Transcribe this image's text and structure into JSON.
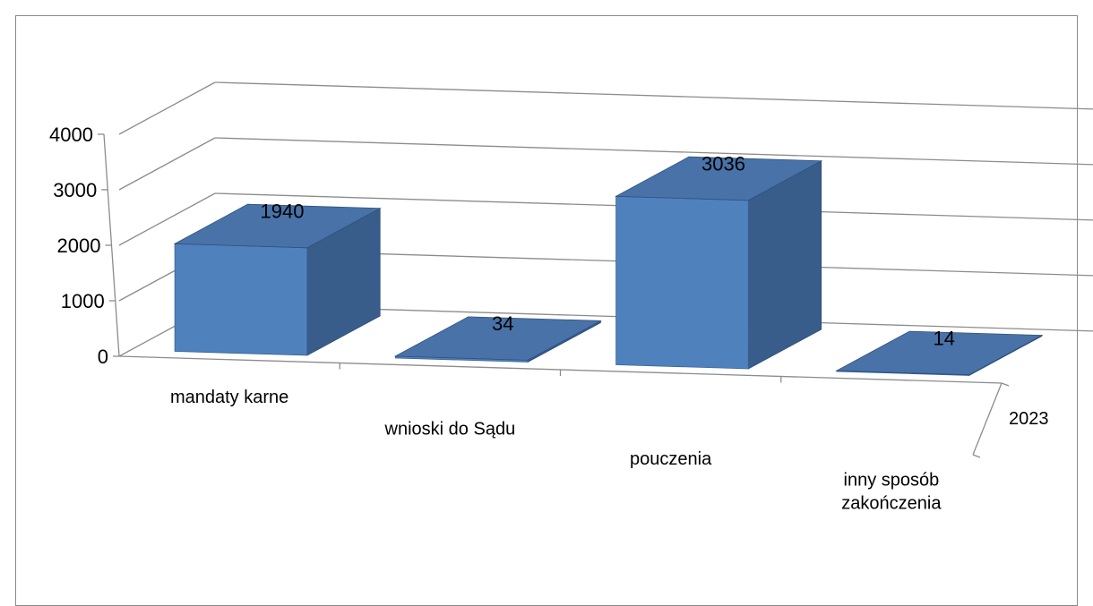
{
  "chart_data": {
    "type": "bar",
    "title": "",
    "categories": [
      "mandaty karne",
      "wnioski do Sądu",
      "pouczenia",
      "inny sposób zakończenia"
    ],
    "series": [
      {
        "name": "2023",
        "values": [
          1940,
          34,
          3036,
          14
        ]
      }
    ],
    "data_labels": [
      "1940",
      "34",
      "3036",
      "14"
    ],
    "ylim": [
      0,
      4000
    ],
    "yticks": [
      "0",
      "1000",
      "2000",
      "3000",
      "4000"
    ],
    "grid": true,
    "legend": "none",
    "style": "3d-column",
    "bar_color": "#4f81bd"
  }
}
